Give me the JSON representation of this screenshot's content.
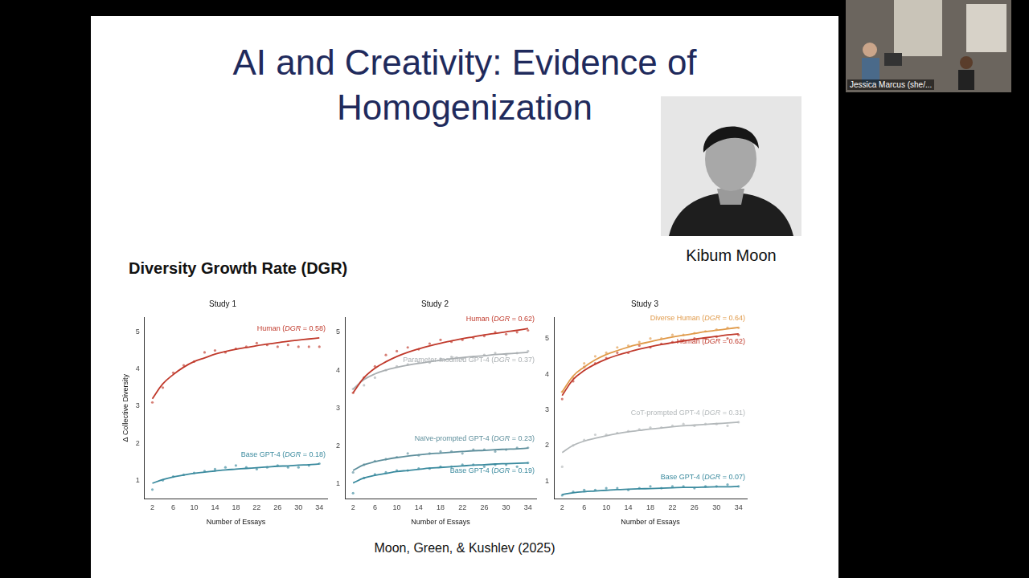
{
  "slide": {
    "title": "AI and Creativity: Evidence of Homogenization",
    "photo_caption": "Kibum Moon",
    "section_label": "Diversity Growth Rate (DGR)",
    "citation": "Moon, Green, & Kushlev (2025)",
    "video_participant": "Jessica Marcus (she/..."
  },
  "chart_data": [
    {
      "type": "line",
      "title": "Study 1",
      "x_label": "Number of Essays",
      "y_label": "Δ Collective Diversity",
      "xlim": [
        0.5,
        35.5
      ],
      "xticks": [
        2,
        6,
        10,
        14,
        18,
        22,
        26,
        30,
        34
      ],
      "ylim": [
        0.5,
        5.4
      ],
      "yticks": [
        1,
        2,
        3,
        4,
        5
      ],
      "grid": false,
      "marker": "circle",
      "x": [
        2,
        4,
        6,
        8,
        10,
        12,
        14,
        16,
        18,
        20,
        22,
        24,
        26,
        28,
        30,
        32,
        34
      ],
      "series": [
        {
          "name": "Human (DGR = 0.58)",
          "color": "#c0392b",
          "values": [
            3.2,
            3.6,
            3.85,
            4.05,
            4.2,
            4.3,
            4.4,
            4.47,
            4.53,
            4.58,
            4.63,
            4.67,
            4.71,
            4.75,
            4.78,
            4.81,
            4.84
          ],
          "points": [
            3.1,
            3.5,
            3.9,
            4.1,
            4.2,
            4.45,
            4.5,
            4.45,
            4.55,
            4.6,
            4.7,
            4.65,
            4.6,
            4.65,
            4.6,
            4.6,
            4.6
          ]
        },
        {
          "name": "Base GPT-4 (DGR = 0.18)",
          "color": "#3a8a9e",
          "values": [
            0.92,
            1.02,
            1.09,
            1.14,
            1.19,
            1.22,
            1.25,
            1.28,
            1.3,
            1.32,
            1.34,
            1.36,
            1.38,
            1.39,
            1.41,
            1.42,
            1.44
          ],
          "points": [
            0.75,
            1.0,
            1.1,
            1.15,
            1.2,
            1.25,
            1.3,
            1.35,
            1.4,
            1.35,
            1.3,
            1.35,
            1.4,
            1.35,
            1.35,
            1.4,
            1.45
          ]
        }
      ]
    },
    {
      "type": "line",
      "title": "Study 2",
      "x_label": "Number of Essays",
      "xlim": [
        0.5,
        35.5
      ],
      "xticks": [
        2,
        6,
        10,
        14,
        18,
        22,
        26,
        30,
        34
      ],
      "ylim": [
        0.6,
        5.4
      ],
      "yticks": [
        1,
        2,
        3,
        4,
        5
      ],
      "grid": false,
      "marker": "circle",
      "x": [
        2,
        4,
        6,
        8,
        10,
        12,
        14,
        16,
        18,
        20,
        22,
        24,
        26,
        28,
        30,
        32,
        34
      ],
      "series": [
        {
          "name": "Human (DGR = 0.62)",
          "color": "#c0392b",
          "values": [
            3.4,
            3.8,
            4.05,
            4.22,
            4.36,
            4.47,
            4.56,
            4.64,
            4.71,
            4.77,
            4.83,
            4.88,
            4.93,
            4.97,
            5.01,
            5.05,
            5.1
          ],
          "points": [
            3.4,
            3.8,
            4.1,
            4.4,
            4.5,
            4.6,
            4.55,
            4.7,
            4.8,
            4.75,
            4.8,
            4.85,
            4.9,
            5.0,
            4.95,
            5.0,
            5.05
          ]
        },
        {
          "name": "Parameter-modified GPT-4 (DGR = 0.37)",
          "color": "#a9aeb1",
          "values": [
            3.5,
            3.75,
            3.9,
            4.0,
            4.07,
            4.13,
            4.18,
            4.22,
            4.26,
            4.3,
            4.33,
            4.36,
            4.38,
            4.41,
            4.43,
            4.45,
            4.47
          ],
          "points": [
            3.5,
            3.6,
            3.8,
            4.0,
            4.1,
            4.15,
            4.2,
            4.2,
            4.3,
            4.35,
            4.3,
            4.35,
            4.4,
            4.45,
            4.4,
            4.45,
            4.5
          ]
        },
        {
          "name": "Naïve-prompted GPT-4 (DGR = 0.23)",
          "color": "#5e8f9c",
          "values": [
            1.35,
            1.5,
            1.58,
            1.64,
            1.69,
            1.73,
            1.76,
            1.79,
            1.81,
            1.83,
            1.85,
            1.87,
            1.88,
            1.9,
            1.91,
            1.92,
            1.94
          ],
          "points": [
            1.3,
            1.5,
            1.6,
            1.65,
            1.7,
            1.8,
            1.75,
            1.8,
            1.85,
            1.85,
            1.8,
            1.9,
            1.9,
            1.85,
            1.9,
            1.95,
            1.95
          ]
        },
        {
          "name": "Base GPT-4 (DGR = 0.19)",
          "color": "#3a8a9e",
          "values": [
            1.02,
            1.15,
            1.22,
            1.27,
            1.32,
            1.35,
            1.38,
            1.41,
            1.43,
            1.45,
            1.47,
            1.49,
            1.5,
            1.52,
            1.53,
            1.54,
            1.55
          ],
          "points": [
            0.75,
            1.15,
            1.25,
            1.3,
            1.35,
            1.35,
            1.4,
            1.4,
            1.45,
            1.45,
            1.5,
            1.5,
            1.45,
            1.5,
            1.5,
            1.45,
            1.55
          ]
        }
      ]
    },
    {
      "type": "line",
      "title": "Study 3",
      "x_label": "Number of Essays",
      "xlim": [
        0.5,
        35.5
      ],
      "xticks": [
        2,
        6,
        10,
        14,
        18,
        22,
        26,
        30,
        34
      ],
      "ylim": [
        0.5,
        5.6
      ],
      "yticks": [
        1,
        2,
        3,
        4,
        5
      ],
      "grid": false,
      "marker": "circle",
      "x": [
        2,
        4,
        6,
        8,
        10,
        12,
        14,
        16,
        18,
        20,
        22,
        24,
        26,
        28,
        30,
        32,
        34
      ],
      "series": [
        {
          "name": "Diverse Human (DGR = 0.64)",
          "color": "#e09a4a",
          "values": [
            3.5,
            3.95,
            4.2,
            4.4,
            4.55,
            4.66,
            4.76,
            4.84,
            4.91,
            4.98,
            5.04,
            5.09,
            5.14,
            5.19,
            5.23,
            5.27,
            5.31
          ],
          "points": [
            3.5,
            3.9,
            4.3,
            4.5,
            4.6,
            4.75,
            4.8,
            4.9,
            5.0,
            5.0,
            5.1,
            5.1,
            5.15,
            5.2,
            5.25,
            5.3,
            5.3
          ]
        },
        {
          "name": "Human (DGR = 0.62)",
          "color": "#c0392b",
          "values": [
            3.4,
            3.85,
            4.1,
            4.28,
            4.42,
            4.53,
            4.62,
            4.7,
            4.77,
            4.83,
            4.88,
            4.93,
            4.98,
            5.02,
            5.06,
            5.1,
            5.13
          ],
          "points": [
            3.3,
            3.8,
            4.2,
            4.3,
            4.45,
            4.6,
            4.6,
            4.8,
            4.75,
            4.85,
            4.9,
            4.95,
            5.0,
            5.0,
            5.05,
            5.0,
            5.1
          ]
        },
        {
          "name": "CoT-prompted GPT-4 (DGR = 0.31)",
          "color": "#b3b8ba",
          "values": [
            1.8,
            2.0,
            2.12,
            2.2,
            2.27,
            2.33,
            2.38,
            2.42,
            2.46,
            2.49,
            2.52,
            2.55,
            2.57,
            2.59,
            2.61,
            2.63,
            2.65
          ],
          "points": [
            1.4,
            2.0,
            2.15,
            2.3,
            2.3,
            2.35,
            2.4,
            2.45,
            2.5,
            2.5,
            2.55,
            2.6,
            2.55,
            2.6,
            2.6,
            2.55,
            2.65
          ]
        },
        {
          "name": "Base GPT-4 (DGR = 0.07)",
          "color": "#3a8a9e",
          "values": [
            0.62,
            0.67,
            0.7,
            0.72,
            0.74,
            0.76,
            0.77,
            0.78,
            0.79,
            0.8,
            0.81,
            0.82,
            0.82,
            0.83,
            0.84,
            0.84,
            0.85
          ],
          "points": [
            0.6,
            0.7,
            0.75,
            0.75,
            0.8,
            0.8,
            0.75,
            0.8,
            0.85,
            0.8,
            0.85,
            0.85,
            0.8,
            0.85,
            0.85,
            0.9,
            0.85
          ]
        }
      ]
    }
  ]
}
